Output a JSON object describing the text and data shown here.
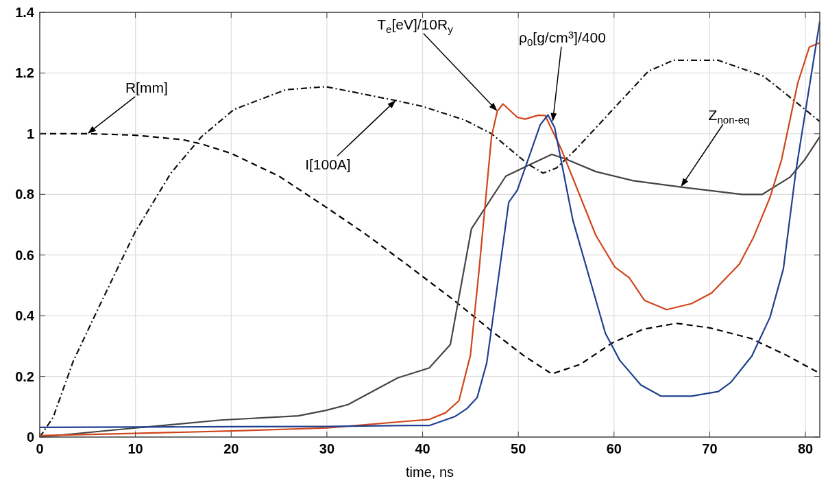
{
  "chart_data": {
    "type": "line",
    "xlabel": "time, ns",
    "xlim": [
      0,
      81.5
    ],
    "xticks": [
      0,
      10,
      20,
      30,
      40,
      50,
      60,
      70,
      80
    ],
    "ylim": [
      0,
      1.4
    ],
    "yticks": [
      0,
      0.2,
      0.4,
      0.6,
      0.8,
      1,
      1.2,
      1.4
    ],
    "grid": true,
    "series": [
      {
        "color": "#000000",
        "line_style": "dashed",
        "x": [
          0,
          5,
          10,
          15,
          17,
          20,
          25,
          29.9,
          34,
          38.3,
          43.4,
          47.2,
          50.5,
          53.5,
          56.5,
          59.8,
          63,
          66.5,
          70,
          74.3,
          78,
          81.5
        ],
        "values": [
          1.0,
          1.0,
          0.995,
          0.98,
          0.965,
          0.935,
          0.86,
          0.758,
          0.67,
          0.57,
          0.448,
          0.35,
          0.27,
          0.208,
          0.24,
          0.31,
          0.355,
          0.375,
          0.36,
          0.325,
          0.27,
          0.21
        ]
      },
      {
        "color": "#111111",
        "line_style": "dashdot",
        "x": [
          0,
          1.4,
          3.5,
          6.2,
          9.95,
          13.7,
          16.9,
          20.3,
          25.7,
          29.9,
          37.1,
          40,
          44.4,
          47.2,
          51,
          52.6,
          54,
          56,
          59.8,
          63.6,
          66.2,
          70.9,
          75.6,
          78.4,
          81.5
        ],
        "values": [
          0,
          0.065,
          0.25,
          0.43,
          0.675,
          0.87,
          0.99,
          1.08,
          1.145,
          1.155,
          1.11,
          1.09,
          1.045,
          1.0,
          0.9,
          0.87,
          0.887,
          0.948,
          1.077,
          1.206,
          1.242,
          1.242,
          1.19,
          1.12,
          1.04
        ]
      },
      {
        "color": "#444444",
        "line_style": "solid",
        "x": [
          0,
          10,
          18.9,
          27,
          29.9,
          32.2,
          37.4,
          40.7,
          42.9,
          45.1,
          48.7,
          51,
          53.5,
          55,
          58.1,
          62,
          67,
          73.4,
          75.5,
          78.4,
          79.9,
          81.5
        ],
        "values": [
          0,
          0.03,
          0.056,
          0.07,
          0.088,
          0.107,
          0.195,
          0.228,
          0.305,
          0.686,
          0.86,
          0.895,
          0.932,
          0.916,
          0.875,
          0.845,
          0.824,
          0.8,
          0.8,
          0.857,
          0.913,
          0.99
        ]
      },
      {
        "color": "#d0451b",
        "line_style": "solid",
        "x": [
          0,
          10,
          20,
          30,
          38.3,
          40.7,
          42.4,
          43.8,
          45,
          45.9,
          47.2,
          47.8,
          48.4,
          49.9,
          50.7,
          52.1,
          52.8,
          54.5,
          58.1,
          60.1,
          61.6,
          63.2,
          65.5,
          68.1,
          70.2,
          73.1,
          74.6,
          76.3,
          77.5,
          79.2,
          80.4,
          81.5
        ],
        "values": [
          0.005,
          0.012,
          0.02,
          0.03,
          0.052,
          0.058,
          0.08,
          0.12,
          0.27,
          0.55,
          0.99,
          1.074,
          1.098,
          1.054,
          1.048,
          1.061,
          1.06,
          0.948,
          0.665,
          0.56,
          0.525,
          0.45,
          0.42,
          0.44,
          0.475,
          0.57,
          0.66,
          0.79,
          0.913,
          1.167,
          1.285,
          1.3
        ]
      },
      {
        "color": "#1f3f8f",
        "line_style": "solid",
        "x": [
          0,
          10,
          20,
          30,
          38.3,
          40.7,
          43.4,
          44.6,
          45.7,
          46.7,
          47.2,
          49,
          49.9,
          52.3,
          53.1,
          53.8,
          55.7,
          59.1,
          60.6,
          62.8,
          64.9,
          68.1,
          70.9,
          72.2,
          74.4,
          76.3,
          77.7,
          79,
          81.5
        ],
        "values": [
          0.032,
          0.033,
          0.034,
          0.035,
          0.038,
          0.038,
          0.068,
          0.093,
          0.13,
          0.244,
          0.357,
          0.774,
          0.814,
          1.03,
          1.062,
          1.02,
          0.715,
          0.342,
          0.253,
          0.172,
          0.135,
          0.135,
          0.15,
          0.18,
          0.267,
          0.395,
          0.555,
          0.876,
          1.37
        ]
      }
    ],
    "annotations": [
      {
        "text": "R[mm]",
        "x": 5,
        "y": 1.0
      },
      {
        "text": "I[100A]",
        "x": 37.2,
        "y": 1.11
      },
      {
        "text": "T$_{e}$[eV]/10R$_{y}$",
        "x": 47.8,
        "y": 1.075
      },
      {
        "text": "ρ$_{0}$[g/cm$^{3}$]/400",
        "x": 53.6,
        "y": 1.04
      },
      {
        "text": "Z$_{non-eq}$",
        "x": 67,
        "y": 0.825
      }
    ]
  }
}
